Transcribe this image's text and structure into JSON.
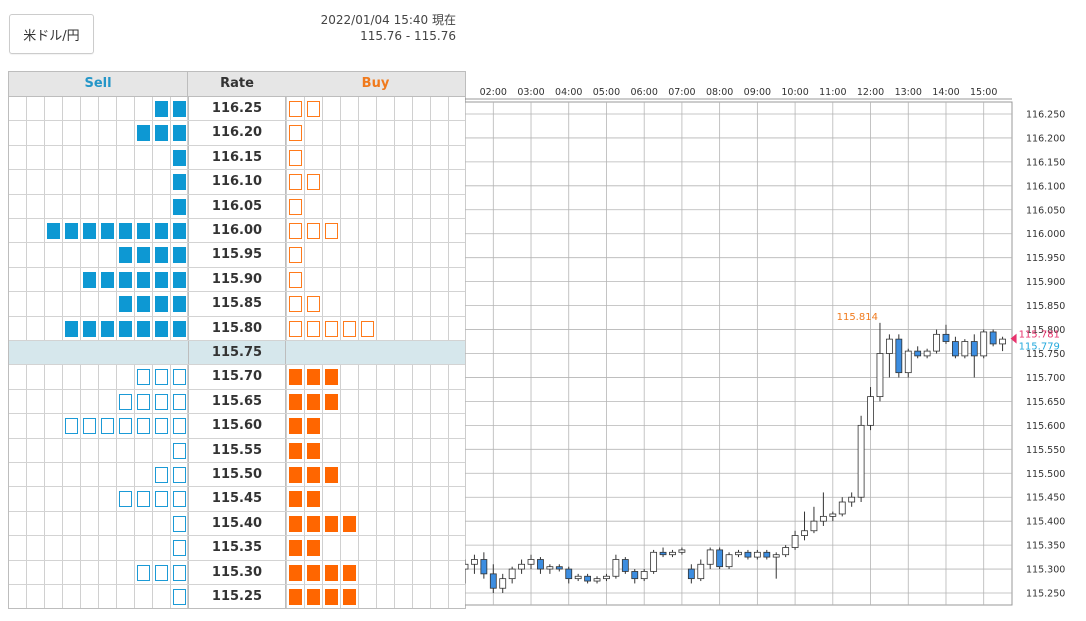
{
  "header": {
    "pair_label": "米ドル/円",
    "timestamp": "2022/01/04 15:40 現在",
    "bid_ask": "115.76 - 115.76"
  },
  "order_board": {
    "sell_label": "Sell",
    "rate_label": "Rate",
    "buy_label": "Buy",
    "current_rate": "115.75",
    "rows": [
      {
        "rate": "116.25",
        "sell": 2,
        "buy": 2
      },
      {
        "rate": "116.20",
        "sell": 3,
        "buy": 1
      },
      {
        "rate": "116.15",
        "sell": 1,
        "buy": 1
      },
      {
        "rate": "116.10",
        "sell": 1,
        "buy": 2
      },
      {
        "rate": "116.05",
        "sell": 1,
        "buy": 1
      },
      {
        "rate": "116.00",
        "sell": 8,
        "buy": 3
      },
      {
        "rate": "115.95",
        "sell": 4,
        "buy": 1
      },
      {
        "rate": "115.90",
        "sell": 6,
        "buy": 1
      },
      {
        "rate": "115.85",
        "sell": 4,
        "buy": 2
      },
      {
        "rate": "115.80",
        "sell": 7,
        "buy": 5
      },
      {
        "rate": "115.75",
        "sell": 0,
        "buy": 0,
        "current": true
      },
      {
        "rate": "115.70",
        "sell": 3,
        "buy": 3
      },
      {
        "rate": "115.65",
        "sell": 4,
        "buy": 3
      },
      {
        "rate": "115.60",
        "sell": 7,
        "buy": 2
      },
      {
        "rate": "115.55",
        "sell": 1,
        "buy": 2
      },
      {
        "rate": "115.50",
        "sell": 2,
        "buy": 3
      },
      {
        "rate": "115.45",
        "sell": 4,
        "buy": 2
      },
      {
        "rate": "115.40",
        "sell": 1,
        "buy": 4
      },
      {
        "rate": "115.35",
        "sell": 1,
        "buy": 2
      },
      {
        "rate": "115.30",
        "sell": 3,
        "buy": 4
      },
      {
        "rate": "115.25",
        "sell": 1,
        "buy": 4
      }
    ]
  },
  "colors": {
    "sell": "#0d98d3",
    "buy": "#ff6600",
    "current_row_bg": "#d6e7ec",
    "bullish_candle": "#ffffff",
    "bearish_candle": "#3c8de0",
    "ask_label": "#e8336d",
    "bid_label": "#22a8dc",
    "high_label": "#f07a1d"
  },
  "chart_data": {
    "type": "candlestick",
    "x_ticks": [
      "02:00",
      "03:00",
      "04:00",
      "05:00",
      "06:00",
      "07:00",
      "08:00",
      "09:00",
      "10:00",
      "11:00",
      "12:00",
      "13:00",
      "14:00",
      "15:00"
    ],
    "y_ticks": [
      "116.250",
      "116.200",
      "116.150",
      "116.100",
      "116.050",
      "116.000",
      "115.950",
      "115.900",
      "115.850",
      "115.800",
      "115.750",
      "115.700",
      "115.650",
      "115.600",
      "115.550",
      "115.500",
      "115.450",
      "115.400",
      "115.350",
      "115.300",
      "115.250"
    ],
    "ylim": [
      115.225,
      116.275
    ],
    "x_start": "01:15",
    "x_end": "15:45",
    "high_label": "115.814",
    "ask_label": "115.781",
    "bid_label": "115.779",
    "high_value": 115.814,
    "ask_value": 115.781,
    "bid_value": 115.779,
    "candles": [
      {
        "t": "01:15",
        "o": 115.3,
        "h": 115.32,
        "l": 115.27,
        "c": 115.31
      },
      {
        "t": "01:30",
        "o": 115.31,
        "h": 115.33,
        "l": 115.29,
        "c": 115.32
      },
      {
        "t": "01:45",
        "o": 115.32,
        "h": 115.335,
        "l": 115.28,
        "c": 115.29
      },
      {
        "t": "02:00",
        "o": 115.29,
        "h": 115.31,
        "l": 115.25,
        "c": 115.26
      },
      {
        "t": "02:15",
        "o": 115.26,
        "h": 115.29,
        "l": 115.25,
        "c": 115.28
      },
      {
        "t": "02:30",
        "o": 115.28,
        "h": 115.305,
        "l": 115.27,
        "c": 115.3
      },
      {
        "t": "02:45",
        "o": 115.3,
        "h": 115.32,
        "l": 115.29,
        "c": 115.31
      },
      {
        "t": "03:00",
        "o": 115.31,
        "h": 115.33,
        "l": 115.3,
        "c": 115.32
      },
      {
        "t": "03:15",
        "o": 115.32,
        "h": 115.325,
        "l": 115.29,
        "c": 115.3
      },
      {
        "t": "03:30",
        "o": 115.3,
        "h": 115.31,
        "l": 115.29,
        "c": 115.305
      },
      {
        "t": "03:45",
        "o": 115.305,
        "h": 115.31,
        "l": 115.295,
        "c": 115.3
      },
      {
        "t": "04:00",
        "o": 115.3,
        "h": 115.305,
        "l": 115.27,
        "c": 115.28
      },
      {
        "t": "04:15",
        "o": 115.28,
        "h": 115.29,
        "l": 115.275,
        "c": 115.285
      },
      {
        "t": "04:30",
        "o": 115.285,
        "h": 115.29,
        "l": 115.27,
        "c": 115.275
      },
      {
        "t": "04:45",
        "o": 115.275,
        "h": 115.285,
        "l": 115.27,
        "c": 115.28
      },
      {
        "t": "05:00",
        "o": 115.28,
        "h": 115.29,
        "l": 115.275,
        "c": 115.285
      },
      {
        "t": "05:15",
        "o": 115.285,
        "h": 115.33,
        "l": 115.28,
        "c": 115.32
      },
      {
        "t": "05:30",
        "o": 115.32,
        "h": 115.325,
        "l": 115.29,
        "c": 115.295
      },
      {
        "t": "05:45",
        "o": 115.295,
        "h": 115.3,
        "l": 115.27,
        "c": 115.28
      },
      {
        "t": "06:00",
        "o": 115.28,
        "h": 115.3,
        "l": 115.275,
        "c": 115.295
      },
      {
        "t": "06:15",
        "o": 115.295,
        "h": 115.34,
        "l": 115.29,
        "c": 115.335
      },
      {
        "t": "06:30",
        "o": 115.335,
        "h": 115.345,
        "l": 115.325,
        "c": 115.33
      },
      {
        "t": "06:45",
        "o": 115.33,
        "h": 115.34,
        "l": 115.325,
        "c": 115.335
      },
      {
        "t": "07:00",
        "o": 115.335,
        "h": 115.345,
        "l": 115.33,
        "c": 115.34
      },
      {
        "t": "07:15",
        "o": 115.3,
        "h": 115.31,
        "l": 115.27,
        "c": 115.28
      },
      {
        "t": "07:30",
        "o": 115.28,
        "h": 115.32,
        "l": 115.275,
        "c": 115.31
      },
      {
        "t": "07:45",
        "o": 115.31,
        "h": 115.345,
        "l": 115.3,
        "c": 115.34
      },
      {
        "t": "08:00",
        "o": 115.34,
        "h": 115.345,
        "l": 115.3,
        "c": 115.305
      },
      {
        "t": "08:15",
        "o": 115.305,
        "h": 115.335,
        "l": 115.3,
        "c": 115.33
      },
      {
        "t": "08:30",
        "o": 115.33,
        "h": 115.34,
        "l": 115.325,
        "c": 115.335
      },
      {
        "t": "08:45",
        "o": 115.335,
        "h": 115.34,
        "l": 115.32,
        "c": 115.325
      },
      {
        "t": "09:00",
        "o": 115.325,
        "h": 115.34,
        "l": 115.32,
        "c": 115.335
      },
      {
        "t": "09:15",
        "o": 115.335,
        "h": 115.34,
        "l": 115.32,
        "c": 115.325
      },
      {
        "t": "09:30",
        "o": 115.325,
        "h": 115.335,
        "l": 115.28,
        "c": 115.33
      },
      {
        "t": "09:45",
        "o": 115.33,
        "h": 115.35,
        "l": 115.325,
        "c": 115.345
      },
      {
        "t": "10:00",
        "o": 115.345,
        "h": 115.38,
        "l": 115.34,
        "c": 115.37
      },
      {
        "t": "10:15",
        "o": 115.37,
        "h": 115.42,
        "l": 115.36,
        "c": 115.38
      },
      {
        "t": "10:30",
        "o": 115.38,
        "h": 115.43,
        "l": 115.375,
        "c": 115.4
      },
      {
        "t": "10:45",
        "o": 115.4,
        "h": 115.46,
        "l": 115.39,
        "c": 115.41
      },
      {
        "t": "11:00",
        "o": 115.41,
        "h": 115.42,
        "l": 115.4,
        "c": 115.415
      },
      {
        "t": "11:15",
        "o": 115.415,
        "h": 115.45,
        "l": 115.41,
        "c": 115.44
      },
      {
        "t": "11:30",
        "o": 115.44,
        "h": 115.46,
        "l": 115.43,
        "c": 115.45
      },
      {
        "t": "11:45",
        "o": 115.45,
        "h": 115.62,
        "l": 115.44,
        "c": 115.6
      },
      {
        "t": "12:00",
        "o": 115.6,
        "h": 115.68,
        "l": 115.59,
        "c": 115.66
      },
      {
        "t": "12:15",
        "o": 115.66,
        "h": 115.814,
        "l": 115.65,
        "c": 115.75
      },
      {
        "t": "12:30",
        "o": 115.75,
        "h": 115.79,
        "l": 115.7,
        "c": 115.78
      },
      {
        "t": "12:45",
        "o": 115.78,
        "h": 115.79,
        "l": 115.7,
        "c": 115.71
      },
      {
        "t": "13:00",
        "o": 115.71,
        "h": 115.76,
        "l": 115.7,
        "c": 115.755
      },
      {
        "t": "13:15",
        "o": 115.755,
        "h": 115.765,
        "l": 115.74,
        "c": 115.745
      },
      {
        "t": "13:30",
        "o": 115.745,
        "h": 115.76,
        "l": 115.74,
        "c": 115.755
      },
      {
        "t": "13:45",
        "o": 115.755,
        "h": 115.8,
        "l": 115.75,
        "c": 115.79
      },
      {
        "t": "14:00",
        "o": 115.79,
        "h": 115.81,
        "l": 115.77,
        "c": 115.775
      },
      {
        "t": "14:15",
        "o": 115.775,
        "h": 115.785,
        "l": 115.74,
        "c": 115.745
      },
      {
        "t": "14:30",
        "o": 115.745,
        "h": 115.78,
        "l": 115.74,
        "c": 115.775
      },
      {
        "t": "14:45",
        "o": 115.775,
        "h": 115.79,
        "l": 115.7,
        "c": 115.745
      },
      {
        "t": "15:00",
        "o": 115.745,
        "h": 115.8,
        "l": 115.74,
        "c": 115.795
      },
      {
        "t": "15:15",
        "o": 115.795,
        "h": 115.8,
        "l": 115.765,
        "c": 115.77
      },
      {
        "t": "15:30",
        "o": 115.77,
        "h": 115.785,
        "l": 115.755,
        "c": 115.78
      }
    ]
  }
}
